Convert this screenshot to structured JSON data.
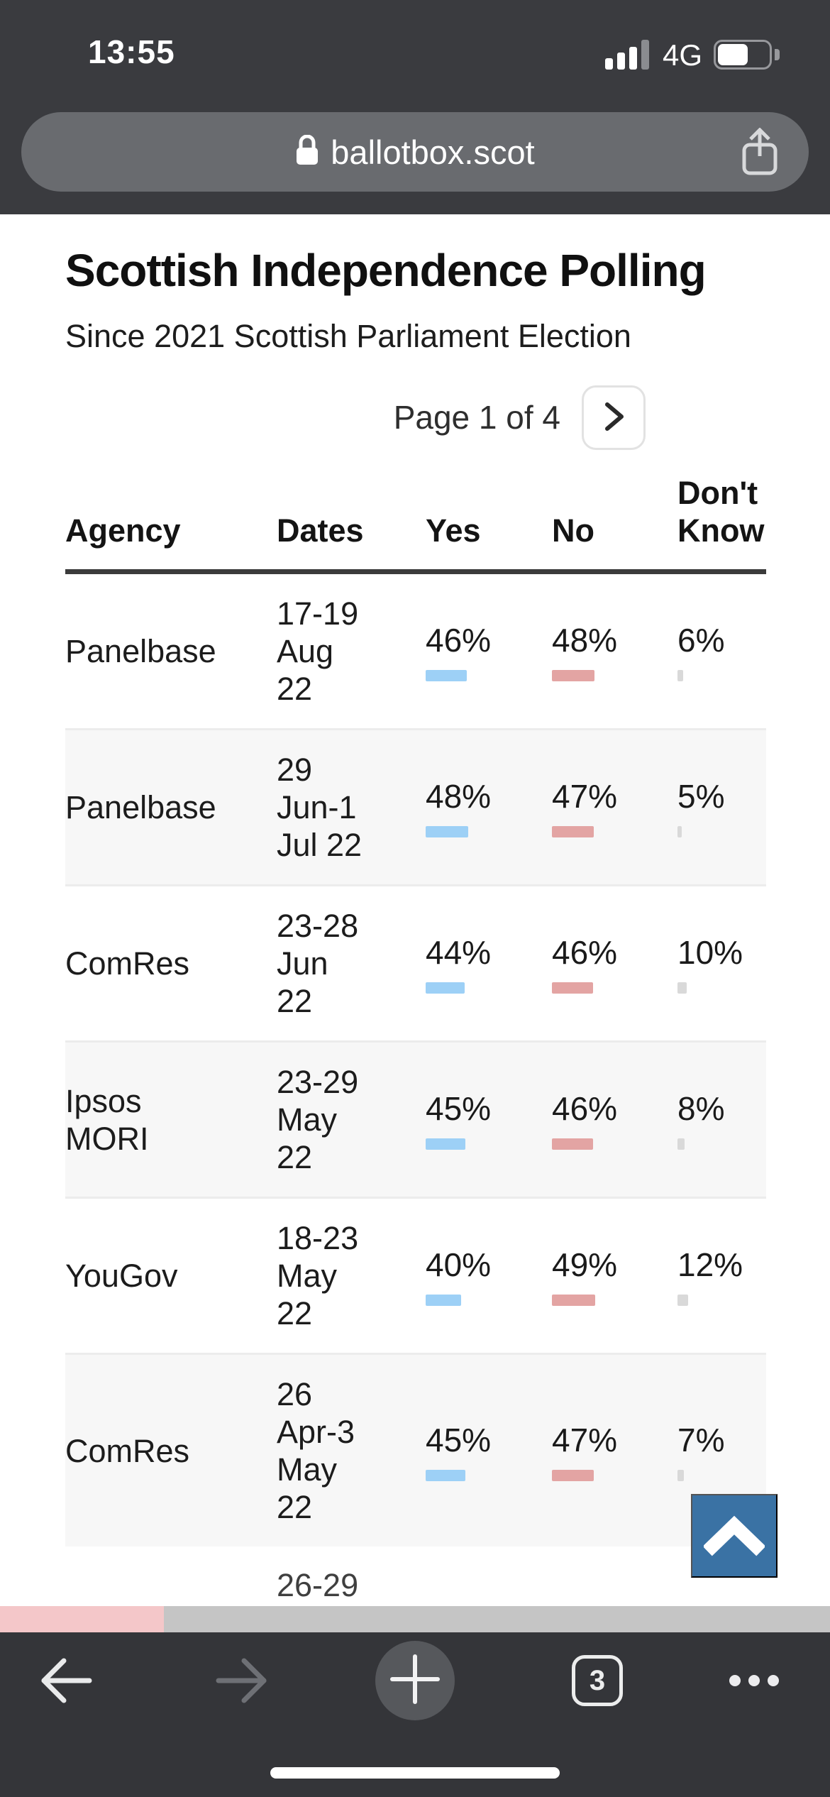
{
  "status_bar": {
    "time": "13:55",
    "network": "4G",
    "signal_bars_filled": 3,
    "signal_bars_total": 4,
    "battery_percent": 55
  },
  "browser": {
    "url": "ballotbox.scot",
    "tab_count": "3"
  },
  "page": {
    "title": "Scottish Independence Polling",
    "subtitle": "Since 2021 Scottish Parliament Election",
    "pagination_label": "Page 1 of 4"
  },
  "chart_data": {
    "type": "table",
    "title": "Scottish Independence Polling",
    "columns": [
      "Agency",
      "Dates",
      "Yes",
      "No",
      "Don't Know"
    ],
    "rows": [
      {
        "agency_lines": [
          "Panelbase"
        ],
        "date_lines": [
          "17-19",
          "Aug",
          "22"
        ],
        "yes": 46,
        "no": 48,
        "dk": 6
      },
      {
        "agency_lines": [
          "Panelbase"
        ],
        "date_lines": [
          "29",
          "Jun-1",
          "Jul 22"
        ],
        "yes": 48,
        "no": 47,
        "dk": 5
      },
      {
        "agency_lines": [
          "ComRes"
        ],
        "date_lines": [
          "23-28",
          "Jun",
          "22"
        ],
        "yes": 44,
        "no": 46,
        "dk": 10
      },
      {
        "agency_lines": [
          "Ipsos",
          "MORI"
        ],
        "date_lines": [
          "23-29",
          "May",
          "22"
        ],
        "yes": 45,
        "no": 46,
        "dk": 8
      },
      {
        "agency_lines": [
          "YouGov"
        ],
        "date_lines": [
          "18-23",
          "May",
          "22"
        ],
        "yes": 40,
        "no": 49,
        "dk": 12
      },
      {
        "agency_lines": [
          "ComRes"
        ],
        "date_lines": [
          "26",
          "Apr-3",
          "May",
          "22"
        ],
        "yes": 45,
        "no": 47,
        "dk": 7
      }
    ],
    "partial_next_row_date": "26-29",
    "bar_colors": {
      "yes": "#9dd0f6",
      "no": "#e3a4a3",
      "dk": "#d9d9d9"
    }
  },
  "colors": {
    "chrome_bg": "#3a3b3f",
    "toolbar_bg": "#343539",
    "url_pill_bg": "#696b6f",
    "scroll_top_bg": "#3a72a4",
    "scrub_pink": "#f2babd",
    "scrub_gray": "#c9c9c9"
  }
}
